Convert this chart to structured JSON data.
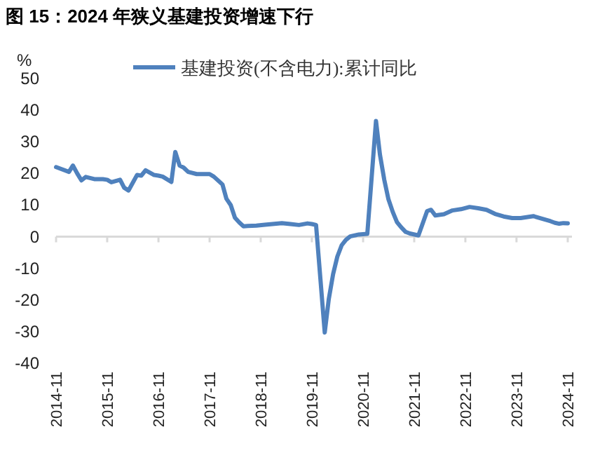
{
  "chart_data": {
    "type": "line",
    "title": "图 15：2024 年狭义基建投资增速下行",
    "ylabel": "%",
    "xlim": [
      "2014-11",
      "2024-12"
    ],
    "xticks": [
      {
        "value": "2014-11",
        "label": "2014-11"
      },
      {
        "value": "2015-11",
        "label": "2015-11"
      },
      {
        "value": "2016-11",
        "label": "2016-11"
      },
      {
        "value": "2017-11",
        "label": "2017-11"
      },
      {
        "value": "2018-11",
        "label": "2018-11"
      },
      {
        "value": "2019-11",
        "label": "2019-11"
      },
      {
        "value": "2020-11",
        "label": "2020-11"
      },
      {
        "value": "2021-11",
        "label": "2021-11"
      },
      {
        "value": "2022-11",
        "label": "2022-11"
      },
      {
        "value": "2023-11",
        "label": "2023-11"
      },
      {
        "value": "2024-11",
        "label": "2024-11"
      }
    ],
    "ylim": [
      -40,
      50
    ],
    "yticks": [
      -40,
      -30,
      -20,
      -10,
      0,
      10,
      20,
      30,
      40,
      50
    ],
    "legend": "top",
    "marker": "none",
    "line_style": "solid",
    "series": [
      {
        "name": "基建投资(不含电力):累计同比",
        "color": "#4f81bd",
        "x": [
          "2014-11",
          "2014-12",
          "2015-02",
          "2015-03",
          "2015-04",
          "2015-05",
          "2015-06",
          "2015-08",
          "2015-10",
          "2015-11",
          "2015-12",
          "2016-02",
          "2016-03",
          "2016-04",
          "2016-06",
          "2016-07",
          "2016-08",
          "2016-10",
          "2016-11",
          "2016-12",
          "2017-02",
          "2017-03",
          "2017-04",
          "2017-05",
          "2017-06",
          "2017-08",
          "2017-11",
          "2017-12",
          "2018-02",
          "2018-03",
          "2018-04",
          "2018-05",
          "2018-06",
          "2018-07",
          "2018-08",
          "2018-10",
          "2018-12",
          "2019-04",
          "2019-06",
          "2019-08",
          "2019-10",
          "2019-11",
          "2019-12",
          "2020-02",
          "2020-03",
          "2020-04",
          "2020-05",
          "2020-06",
          "2020-07",
          "2020-08",
          "2020-10",
          "2020-12",
          "2021-02",
          "2021-03",
          "2021-04",
          "2021-05",
          "2021-06",
          "2021-07",
          "2021-08",
          "2021-09",
          "2021-10",
          "2021-12",
          "2022-02",
          "2022-03",
          "2022-04",
          "2022-06",
          "2022-08",
          "2022-10",
          "2022-12",
          "2023-02",
          "2023-04",
          "2023-06",
          "2023-08",
          "2023-10",
          "2023-12",
          "2024-03",
          "2024-05",
          "2024-07",
          "2024-08",
          "2024-09",
          "2024-10",
          "2024-11"
        ],
        "values": [
          22,
          21.5,
          20.5,
          22.5,
          20,
          17.8,
          18.9,
          18.2,
          18.2,
          18,
          17.2,
          18,
          15.5,
          14.6,
          19.5,
          19.3,
          21,
          19.5,
          19.3,
          19,
          17.3,
          26.8,
          22.5,
          21.8,
          20.5,
          19.8,
          19.8,
          19,
          16.5,
          12,
          10,
          6,
          4.5,
          3.3,
          3.4,
          3.5,
          3.8,
          4.3,
          4,
          3.7,
          4.2,
          4,
          3.7,
          -30.3,
          -19.7,
          -11.8,
          -6.3,
          -2.7,
          -1,
          0.1,
          0.7,
          0.9,
          36.6,
          26,
          18,
          11.8,
          7.8,
          4.6,
          2.9,
          1.5,
          1,
          0.4,
          8.1,
          8.5,
          6.7,
          7.1,
          8.3,
          8.7,
          9.4,
          9,
          8.5,
          7.2,
          6.4,
          5.9,
          5.9,
          6.5,
          5.7,
          4.9,
          4.4,
          4.1,
          4.3,
          4.2
        ]
      }
    ]
  }
}
